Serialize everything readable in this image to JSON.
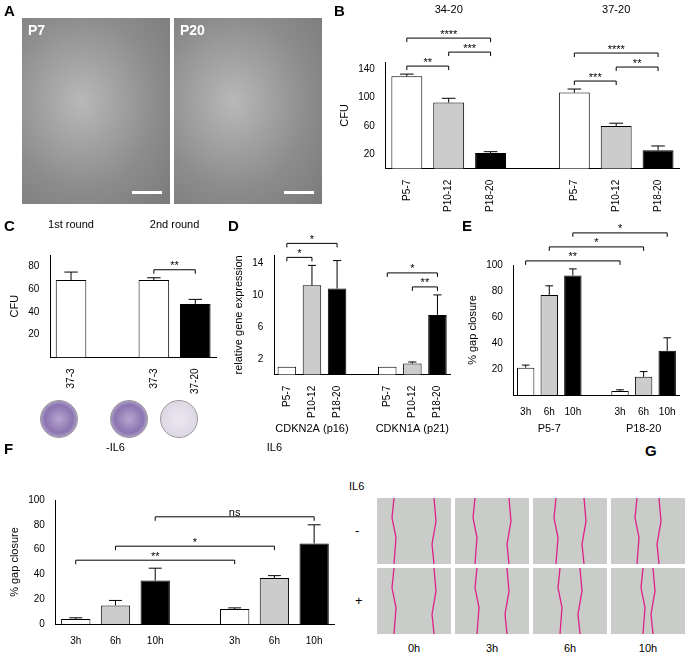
{
  "chart_data": [
    {
      "type": "bar",
      "panel": "B",
      "y_label": "CFU",
      "ylim": [
        0,
        150
      ],
      "yticks": [
        20,
        60,
        100,
        140
      ],
      "groups": [
        {
          "name": "34-20",
          "categories": [
            "P5-7",
            "P10-12",
            "P18-20"
          ],
          "values": [
            130,
            93,
            22
          ],
          "errors": [
            3,
            6,
            2
          ],
          "colors": [
            "#ffffff",
            "#cccccc",
            "#000000"
          ]
        },
        {
          "name": "37-20",
          "categories": [
            "P5-7",
            "P10-12",
            "P18-20"
          ],
          "values": [
            107,
            60,
            26
          ],
          "errors": [
            5,
            4,
            6
          ],
          "colors": [
            "#ffffff",
            "#cccccc",
            "#000000"
          ]
        }
      ],
      "significance": [
        {
          "from": [
            0,
            0
          ],
          "to": [
            0,
            1
          ],
          "label": "**"
        },
        {
          "from": [
            0,
            1
          ],
          "to": [
            0,
            2
          ],
          "label": "***"
        },
        {
          "from": [
            0,
            0
          ],
          "to": [
            0,
            2
          ],
          "label": "****"
        },
        {
          "from": [
            1,
            0
          ],
          "to": [
            1,
            1
          ],
          "label": "***"
        },
        {
          "from": [
            1,
            1
          ],
          "to": [
            1,
            2
          ],
          "label": "**"
        },
        {
          "from": [
            1,
            0
          ],
          "to": [
            1,
            2
          ],
          "label": "****"
        }
      ]
    },
    {
      "type": "bar",
      "panel": "C",
      "y_label": "CFU",
      "ylim": [
        0,
        90
      ],
      "yticks": [
        20,
        40,
        60,
        80
      ],
      "groups": [
        {
          "name": "1st round",
          "categories": [
            "37-3"
          ],
          "values": [
            68
          ],
          "errors": [
            7
          ],
          "colors": [
            "#ffffff"
          ]
        },
        {
          "name": "2nd round",
          "categories": [
            "37-3",
            "37-20"
          ],
          "values": [
            68,
            47
          ],
          "errors": [
            2,
            4
          ],
          "colors": [
            "#ffffff",
            "#000000"
          ]
        }
      ],
      "significance": [
        {
          "from": [
            1,
            0
          ],
          "to": [
            1,
            1
          ],
          "label": "**"
        }
      ]
    },
    {
      "type": "bar",
      "panel": "D",
      "y_label": "relative gene expression",
      "ylim": [
        0,
        15
      ],
      "yticks": [
        2,
        6,
        10,
        14
      ],
      "groups": [
        {
          "name": "CDKN2A (p16)",
          "categories": [
            "P5-7",
            "P10-12",
            "P18-20"
          ],
          "values": [
            1,
            11.2,
            10.8
          ],
          "errors": [
            0,
            2.5,
            3.5
          ],
          "colors": [
            "#ffffff",
            "#cccccc",
            "#000000"
          ]
        },
        {
          "name": "CDKN1A (p21)",
          "categories": [
            "P5-7",
            "P10-12",
            "P18-20"
          ],
          "values": [
            1,
            1.4,
            7.5
          ],
          "errors": [
            0,
            0.2,
            2.5
          ],
          "colors": [
            "#ffffff",
            "#cccccc",
            "#000000"
          ]
        }
      ],
      "significance": [
        {
          "from": [
            0,
            0
          ],
          "to": [
            0,
            1
          ],
          "label": "*"
        },
        {
          "from": [
            0,
            0
          ],
          "to": [
            0,
            2
          ],
          "label": "*"
        },
        {
          "from": [
            1,
            1
          ],
          "to": [
            1,
            2
          ],
          "label": "**"
        },
        {
          "from": [
            1,
            0
          ],
          "to": [
            1,
            2
          ],
          "label": "*"
        }
      ]
    },
    {
      "type": "bar",
      "panel": "E",
      "y_label": "% gap closure",
      "ylim": [
        0,
        100
      ],
      "yticks": [
        20,
        40,
        60,
        80,
        100
      ],
      "groups": [
        {
          "name": "P5-7",
          "categories": [
            "3h",
            "6h",
            "10h"
          ],
          "values": [
            21,
            77,
            92
          ],
          "errors": [
            2,
            7,
            5
          ],
          "colors": [
            "#ffffff",
            "#cccccc",
            "#000000"
          ]
        },
        {
          "name": "P18-20",
          "categories": [
            "3h",
            "6h",
            "10h"
          ],
          "values": [
            3,
            14,
            34
          ],
          "errors": [
            1,
            4,
            10
          ],
          "colors": [
            "#ffffff",
            "#cccccc",
            "#000000"
          ]
        }
      ],
      "significance": [
        {
          "from": [
            0,
            0
          ],
          "to": [
            1,
            0
          ],
          "label": "**"
        },
        {
          "from": [
            0,
            1
          ],
          "to": [
            1,
            1
          ],
          "label": "*"
        },
        {
          "from": [
            0,
            2
          ],
          "to": [
            1,
            2
          ],
          "label": "*"
        }
      ]
    },
    {
      "type": "bar",
      "panel": "F",
      "y_label": "% gap closure",
      "ylim": [
        0,
        100
      ],
      "yticks": [
        0,
        20,
        40,
        60,
        80,
        100
      ],
      "groups": [
        {
          "name": "-IL6",
          "categories": [
            "3h",
            "6h",
            "10h"
          ],
          "values": [
            4,
            15,
            35
          ],
          "errors": [
            1,
            4,
            10
          ],
          "colors": [
            "#ffffff",
            "#cccccc",
            "#000000"
          ]
        },
        {
          "name": "IL6",
          "categories": [
            "3h",
            "6h",
            "10h"
          ],
          "values": [
            12,
            37,
            65
          ],
          "errors": [
            1,
            2,
            15
          ],
          "colors": [
            "#ffffff",
            "#cccccc",
            "#000000"
          ]
        }
      ],
      "significance": [
        {
          "from": [
            0,
            0
          ],
          "to": [
            1,
            0
          ],
          "label": "**"
        },
        {
          "from": [
            0,
            1
          ],
          "to": [
            1,
            1
          ],
          "label": "*"
        },
        {
          "from": [
            0,
            2
          ],
          "to": [
            1,
            2
          ],
          "label": "ns"
        }
      ]
    }
  ],
  "images": [
    {
      "panel": "A",
      "labels": [
        "P7",
        "P20"
      ]
    },
    {
      "panel": "G",
      "row_title": "IL6",
      "rows": [
        "-",
        "+"
      ],
      "columns": [
        "0h",
        "3h",
        "6h",
        "10h"
      ]
    }
  ]
}
